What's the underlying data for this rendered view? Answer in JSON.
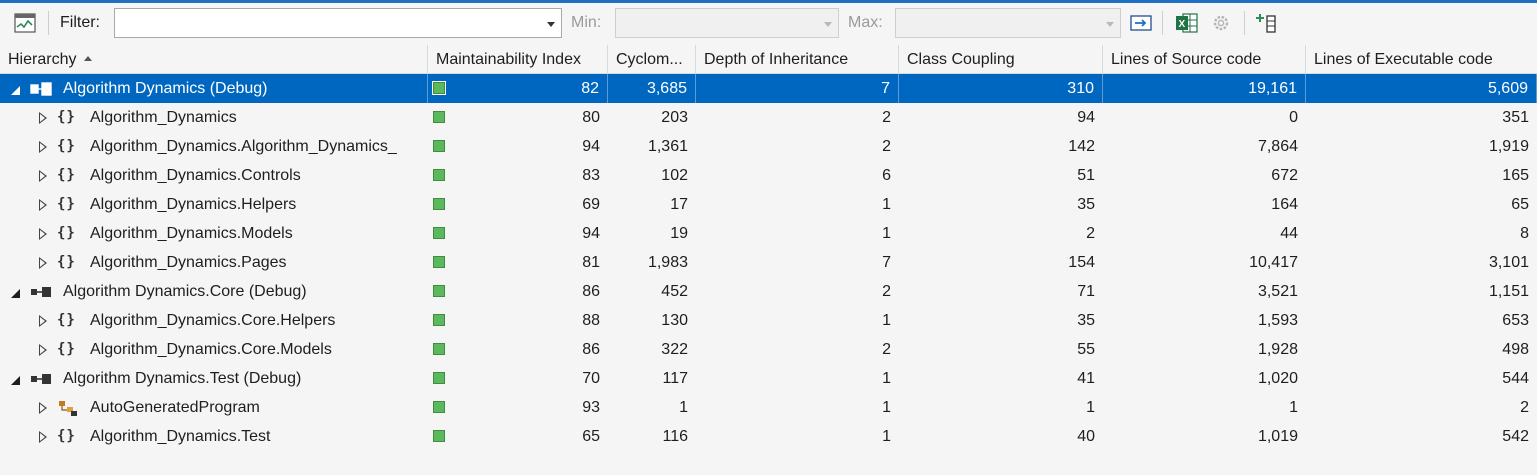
{
  "toolbar": {
    "filter_label": "Filter:",
    "filter_value": "",
    "min_label": "Min:",
    "max_label": "Max:",
    "icons": [
      "metrics-chart-icon",
      "apply-filter-icon",
      "excel-icon",
      "settings-icon",
      "add-column-icon"
    ]
  },
  "columns": {
    "hierarchy": "Hierarchy",
    "maintainability": "Maintainability Index",
    "cyclomatic": "Cyclom...",
    "depth": "Depth of Inheritance",
    "coupling": "Class Coupling",
    "source": "Lines of Source code",
    "executable": "Lines of Executable code"
  },
  "rows": [
    {
      "name": "Algorithm Dynamics (Debug)",
      "level": 0,
      "expanded": true,
      "icon": "project-icon",
      "selected": true,
      "mi": "82",
      "cc": "3,685",
      "doi": "7",
      "coup": "310",
      "src": "19,161",
      "exe": "5,609"
    },
    {
      "name": "Algorithm_Dynamics",
      "level": 1,
      "expanded": false,
      "icon": "namespace-icon",
      "mi": "80",
      "cc": "203",
      "doi": "2",
      "coup": "94",
      "src": "0",
      "exe": "351"
    },
    {
      "name": "Algorithm_Dynamics.Algorithm_Dynamics_",
      "level": 1,
      "expanded": false,
      "icon": "namespace-icon",
      "mi": "94",
      "cc": "1,361",
      "doi": "2",
      "coup": "142",
      "src": "7,864",
      "exe": "1,919"
    },
    {
      "name": "Algorithm_Dynamics.Controls",
      "level": 1,
      "expanded": false,
      "icon": "namespace-icon",
      "mi": "83",
      "cc": "102",
      "doi": "6",
      "coup": "51",
      "src": "672",
      "exe": "165"
    },
    {
      "name": "Algorithm_Dynamics.Helpers",
      "level": 1,
      "expanded": false,
      "icon": "namespace-icon",
      "mi": "69",
      "cc": "17",
      "doi": "1",
      "coup": "35",
      "src": "164",
      "exe": "65"
    },
    {
      "name": "Algorithm_Dynamics.Models",
      "level": 1,
      "expanded": false,
      "icon": "namespace-icon",
      "mi": "94",
      "cc": "19",
      "doi": "1",
      "coup": "2",
      "src": "44",
      "exe": "8"
    },
    {
      "name": "Algorithm_Dynamics.Pages",
      "level": 1,
      "expanded": false,
      "icon": "namespace-icon",
      "mi": "81",
      "cc": "1,983",
      "doi": "7",
      "coup": "154",
      "src": "10,417",
      "exe": "3,101"
    },
    {
      "name": "Algorithm Dynamics.Core (Debug)",
      "level": 0,
      "expanded": true,
      "icon": "library-icon",
      "mi": "86",
      "cc": "452",
      "doi": "2",
      "coup": "71",
      "src": "3,521",
      "exe": "1,151"
    },
    {
      "name": "Algorithm_Dynamics.Core.Helpers",
      "level": 1,
      "expanded": false,
      "icon": "namespace-icon",
      "mi": "88",
      "cc": "130",
      "doi": "1",
      "coup": "35",
      "src": "1,593",
      "exe": "653"
    },
    {
      "name": "Algorithm_Dynamics.Core.Models",
      "level": 1,
      "expanded": false,
      "icon": "namespace-icon",
      "mi": "86",
      "cc": "322",
      "doi": "2",
      "coup": "55",
      "src": "1,928",
      "exe": "498"
    },
    {
      "name": "Algorithm Dynamics.Test (Debug)",
      "level": 0,
      "expanded": true,
      "icon": "library-icon",
      "mi": "70",
      "cc": "117",
      "doi": "1",
      "coup": "41",
      "src": "1,020",
      "exe": "544"
    },
    {
      "name": "AutoGeneratedProgram",
      "level": 1,
      "expanded": false,
      "icon": "class-icon",
      "mi": "93",
      "cc": "1",
      "doi": "1",
      "coup": "1",
      "src": "1",
      "exe": "2"
    },
    {
      "name": "Algorithm_Dynamics.Test",
      "level": 1,
      "expanded": false,
      "icon": "namespace-icon",
      "mi": "65",
      "cc": "116",
      "doi": "1",
      "coup": "40",
      "src": "1,019",
      "exe": "542"
    }
  ],
  "colors": {
    "selection": "#0067c0",
    "rating_green": "#5cb85c",
    "accent": "#1f6fc2"
  }
}
